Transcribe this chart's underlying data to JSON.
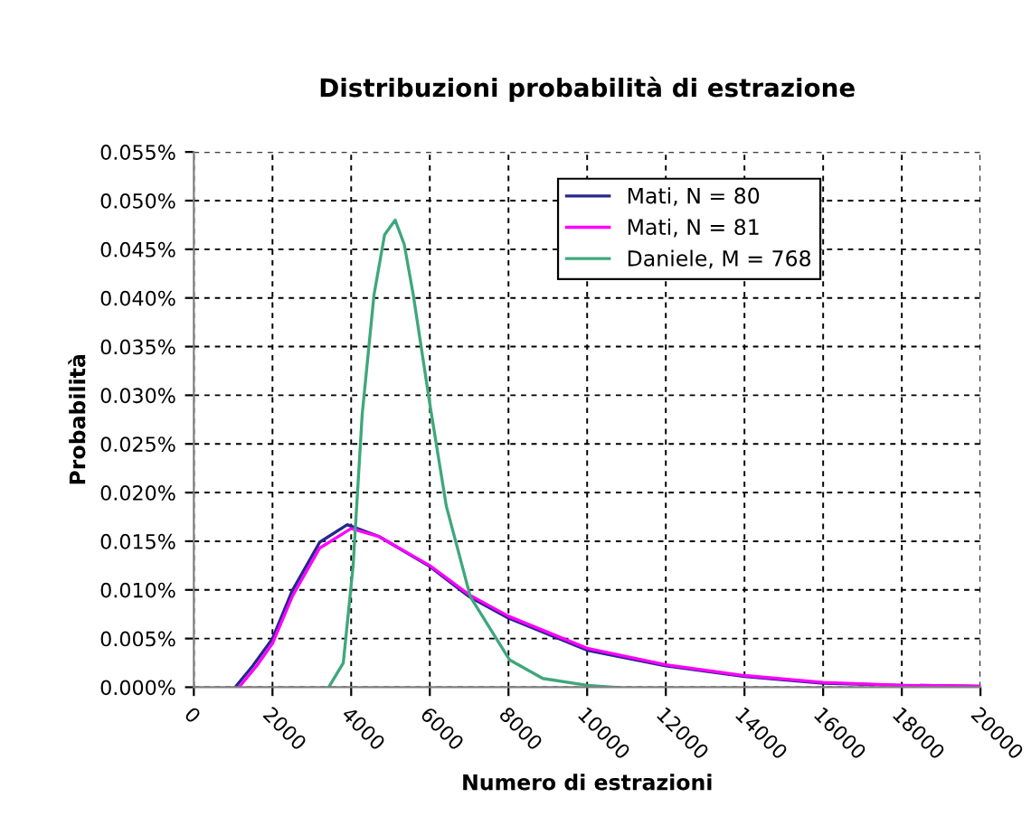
{
  "chart_data": {
    "type": "line",
    "title": "Distribuzioni probabilità di estrazione",
    "xlabel": "Numero di estrazioni",
    "ylabel": "Probabilità",
    "xlim": [
      0,
      20000
    ],
    "xticks": [
      0,
      2000,
      4000,
      6000,
      8000,
      10000,
      12000,
      14000,
      16000,
      18000,
      20000
    ],
    "ylim": [
      0,
      0.055
    ],
    "yticks": [
      {
        "value": 0,
        "label": "0.000%"
      },
      {
        "value": 0.005,
        "label": "0.005%"
      },
      {
        "value": 0.01,
        "label": "0.010%"
      },
      {
        "value": 0.015,
        "label": "0.015%"
      },
      {
        "value": 0.02,
        "label": "0.020%"
      },
      {
        "value": 0.025,
        "label": "0.025%"
      },
      {
        "value": 0.03,
        "label": "0.030%"
      },
      {
        "value": 0.035,
        "label": "0.035%"
      },
      {
        "value": 0.04,
        "label": "0.040%"
      },
      {
        "value": 0.045,
        "label": "0.045%"
      },
      {
        "value": 0.05,
        "label": "0.050%"
      },
      {
        "value": 0.055,
        "label": "0.055%"
      }
    ],
    "grid": true,
    "legend": "top right",
    "marker": "none",
    "line_style": "solid",
    "series": [
      {
        "name": "Mati, N = 80",
        "color": "#26268f",
        "x": [
          1050,
          1500,
          2000,
          2500,
          3200,
          3900,
          4700,
          6000,
          7000,
          8000,
          10000,
          12000,
          14000,
          16000,
          18000,
          20000
        ],
        "values": [
          0,
          0.0022,
          0.005,
          0.0099,
          0.0149,
          0.0167,
          0.0155,
          0.0124,
          0.0093,
          0.0071,
          0.0038,
          0.0022,
          0.0011,
          0.0004,
          0.0002,
          0.0001
        ]
      },
      {
        "name": "Mati, N = 81",
        "color": "#ff00ff",
        "x": [
          1150,
          1600,
          2000,
          2500,
          3200,
          4000,
          4700,
          6000,
          7000,
          8000,
          10000,
          12000,
          14000,
          16000,
          18000,
          20000
        ],
        "values": [
          0,
          0.0022,
          0.0045,
          0.0093,
          0.0143,
          0.0163,
          0.0155,
          0.0125,
          0.0095,
          0.0073,
          0.004,
          0.0023,
          0.0012,
          0.0005,
          0.0002,
          0.0001
        ]
      },
      {
        "name": "Daniele, M = 768",
        "color": "#3fa77c",
        "x": [
          3430,
          3800,
          4050,
          4280,
          4580,
          4850,
          5120,
          5350,
          5580,
          6000,
          6420,
          7030,
          8030,
          8870,
          10000,
          10700
        ],
        "values": [
          0,
          0.0025,
          0.0125,
          0.028,
          0.0403,
          0.0465,
          0.048,
          0.0455,
          0.0403,
          0.0291,
          0.0186,
          0.0093,
          0.0028,
          0.0009,
          0.0002,
          0
        ]
      }
    ]
  }
}
